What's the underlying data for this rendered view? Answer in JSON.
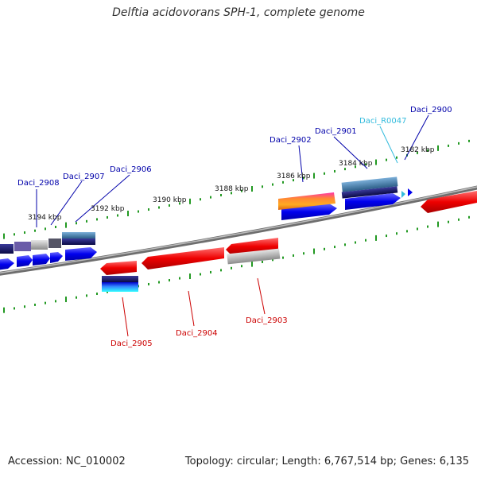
{
  "title": "Delftia acidovorans SPH-1, complete genome",
  "footer": {
    "accession": "Accession: NC_010002",
    "topology": "Topology: circular; Length: 6,767,514 bp; Genes: 6,135"
  },
  "kbp_labels": [
    "3194 kbp",
    "3192 kbp",
    "3190 kbp",
    "3188 kbp",
    "3186 kbp",
    "3184 kbp",
    "3182 kbp"
  ],
  "gene_labels_top": [
    {
      "name": "Daci_2908",
      "color": "#0000aa"
    },
    {
      "name": "Daci_2907",
      "color": "#0000aa"
    },
    {
      "name": "Daci_2906",
      "color": "#0000aa"
    },
    {
      "name": "Daci_2902",
      "color": "#0000aa"
    },
    {
      "name": "Daci_2901",
      "color": "#0000aa"
    },
    {
      "name": "Daci_R0047",
      "color": "#33bbdd"
    },
    {
      "name": "Daci_2900",
      "color": "#0000aa"
    }
  ],
  "gene_labels_bottom": [
    {
      "name": "Daci_2905",
      "color": "#cc0000"
    },
    {
      "name": "Daci_2904",
      "color": "#cc0000"
    },
    {
      "name": "Daci_2903",
      "color": "#cc0000"
    }
  ],
  "colors": {
    "forward_strand": "#0000ee",
    "reverse_strand": "#ee0000",
    "backbone": "#777777",
    "ticks": "#229922",
    "rna": "#33bbdd"
  }
}
